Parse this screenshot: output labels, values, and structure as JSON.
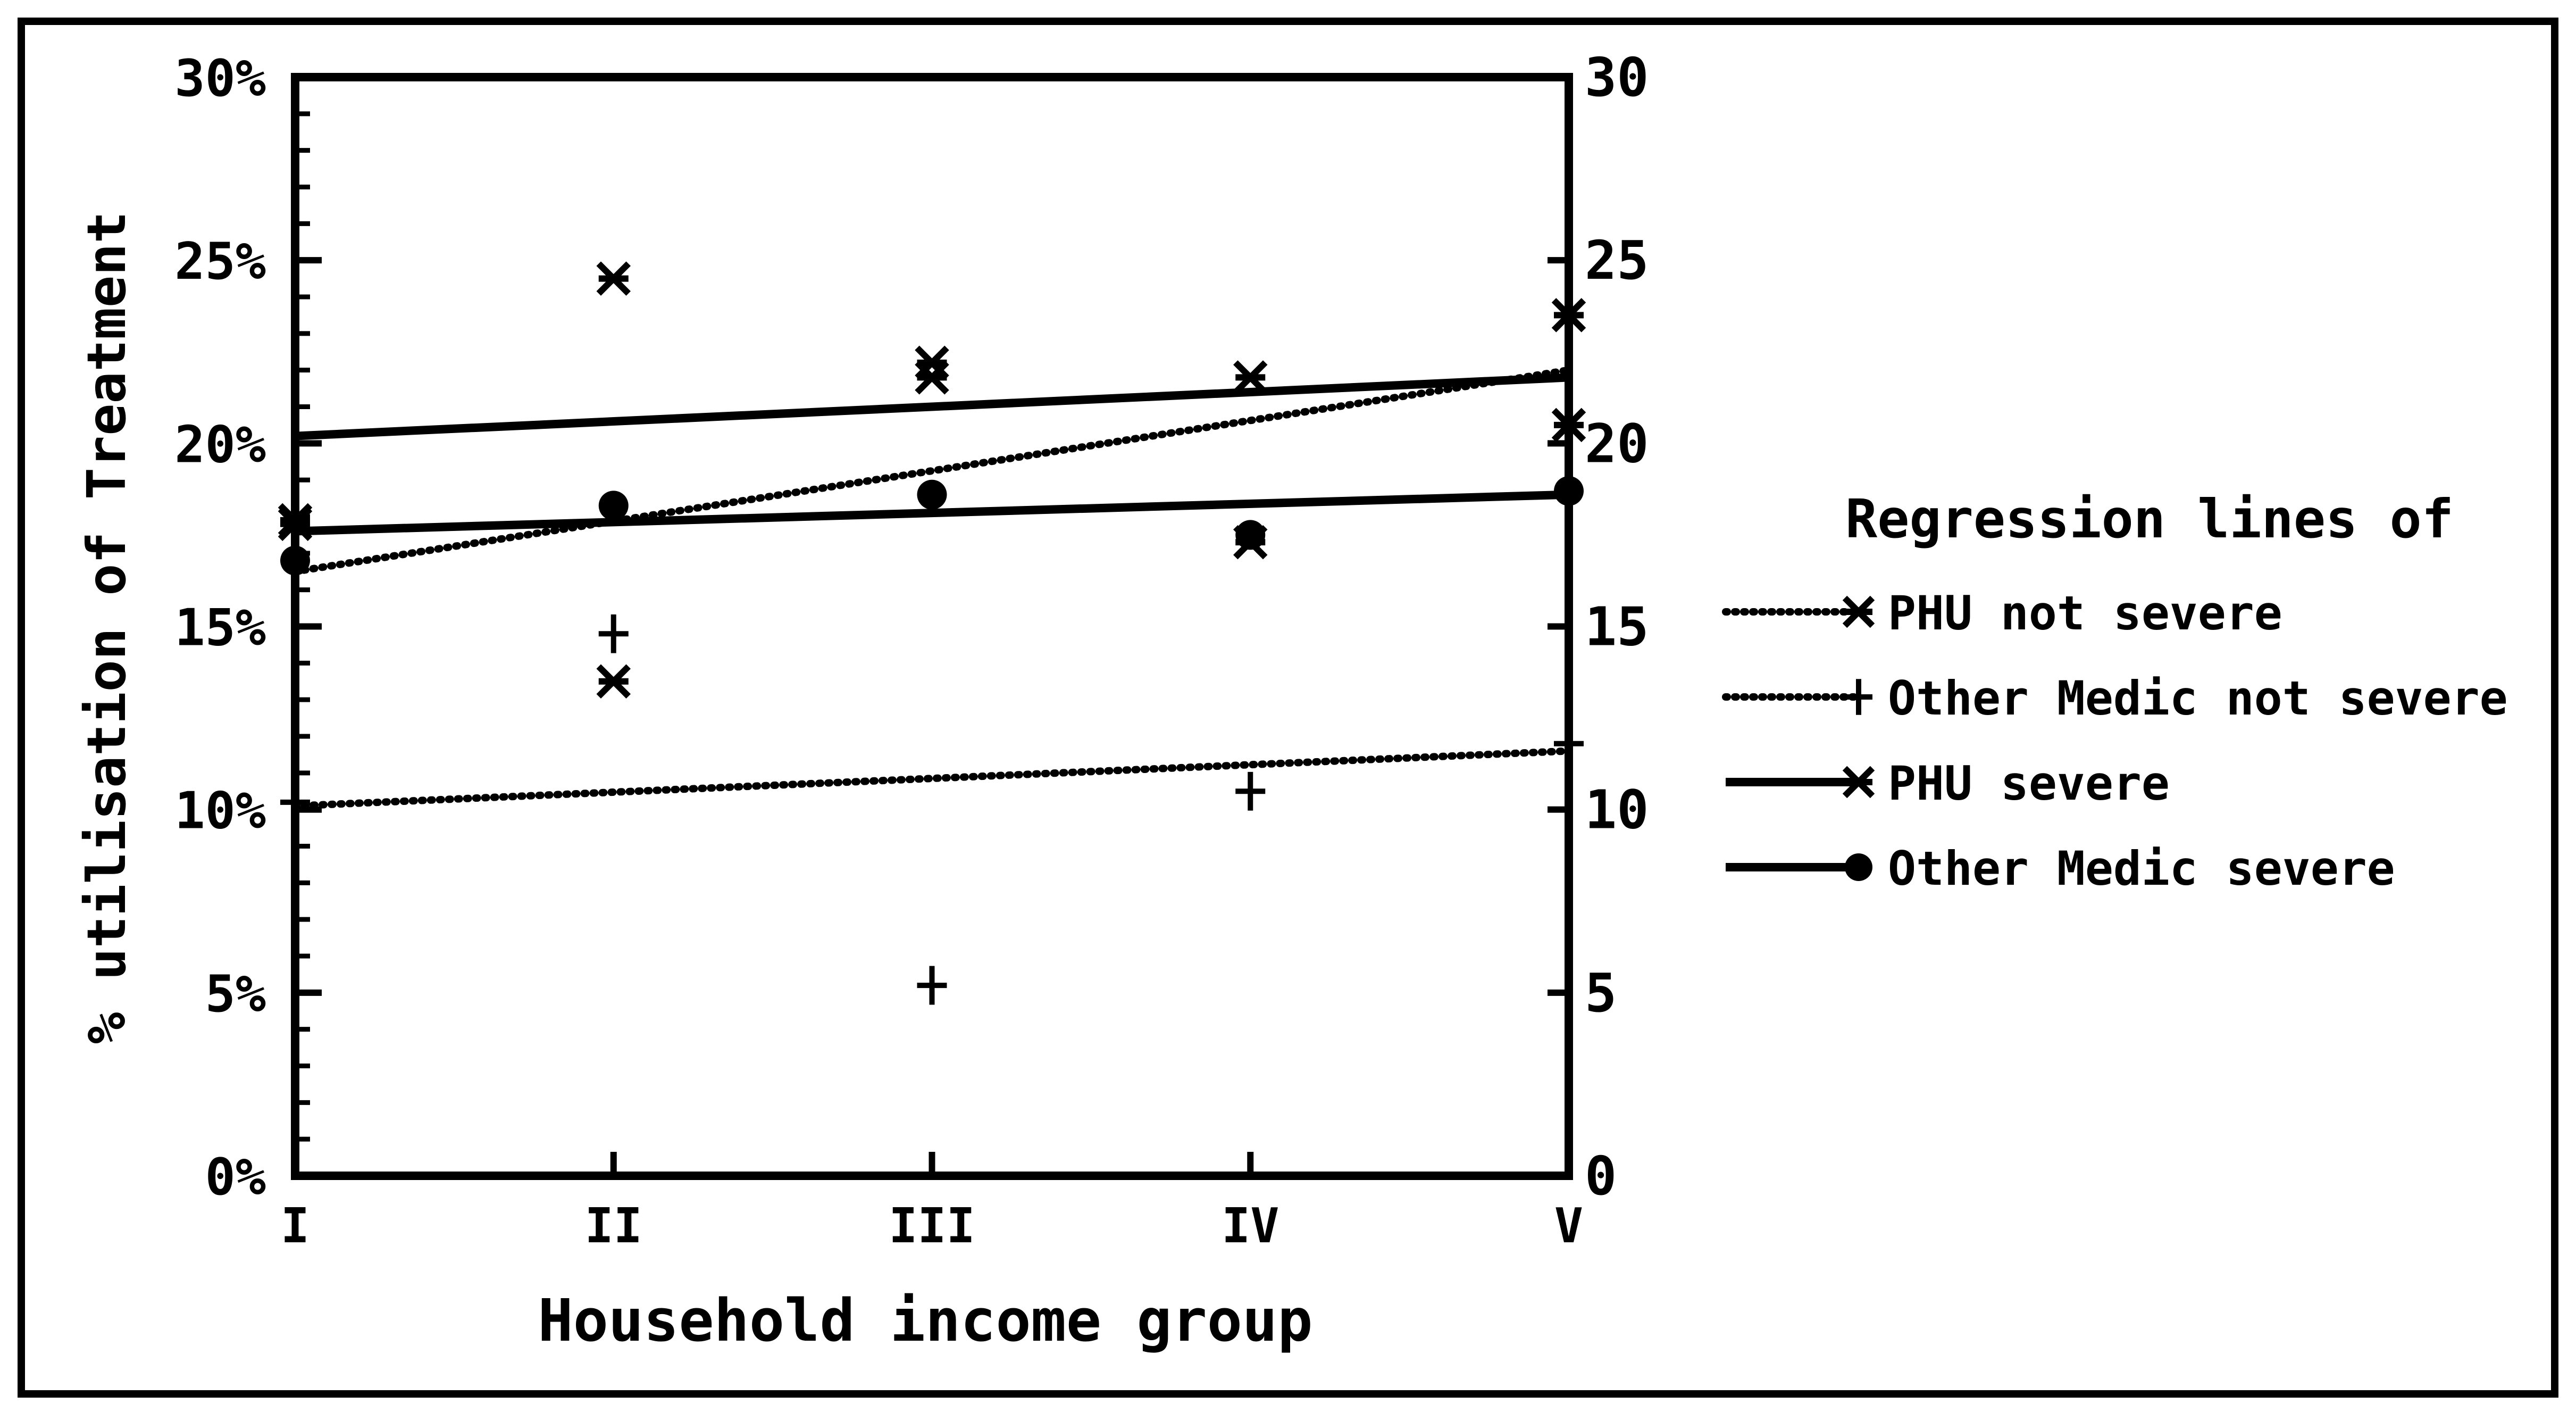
{
  "chart_data": {
    "type": "scatter",
    "categories": [
      "I",
      "II",
      "III",
      "IV",
      "V"
    ],
    "xlabel": "Household income group",
    "ylabel": "% utilisation of Treatment",
    "ylim": [
      0,
      30
    ],
    "y_ticks_left": [
      "0%",
      "5%",
      "10%",
      "15%",
      "20%",
      "25%",
      "30%"
    ],
    "y_ticks_right": [
      "0",
      "5",
      "10",
      "15",
      "20",
      "25",
      "30"
    ],
    "grid": false,
    "legend_title": "Regression lines of",
    "legend_position": "right",
    "series": [
      {
        "name": "PHU not severe",
        "marker": "asterisk",
        "line_style": "dotted",
        "points": [
          17.8,
          13.5,
          21.8,
          17.3,
          20.5
        ],
        "regression": [
          16.5,
          22.0
        ]
      },
      {
        "name": "Other Medic not severe",
        "marker": "plus",
        "line_style": "dashed",
        "points": [
          10.2,
          14.8,
          5.2,
          10.5,
          11.8
        ],
        "regression": [
          10.1,
          11.6
        ]
      },
      {
        "name": "PHU severe",
        "marker": "asterisk",
        "line_style": "solid",
        "points": [
          17.9,
          24.5,
          22.2,
          21.8,
          23.5
        ],
        "regression": [
          20.2,
          21.8
        ]
      },
      {
        "name": "Other Medic severe",
        "marker": "circle",
        "line_style": "solid",
        "points": [
          16.8,
          18.3,
          18.6,
          17.5,
          18.7
        ],
        "regression": [
          17.6,
          18.6
        ]
      }
    ]
  }
}
